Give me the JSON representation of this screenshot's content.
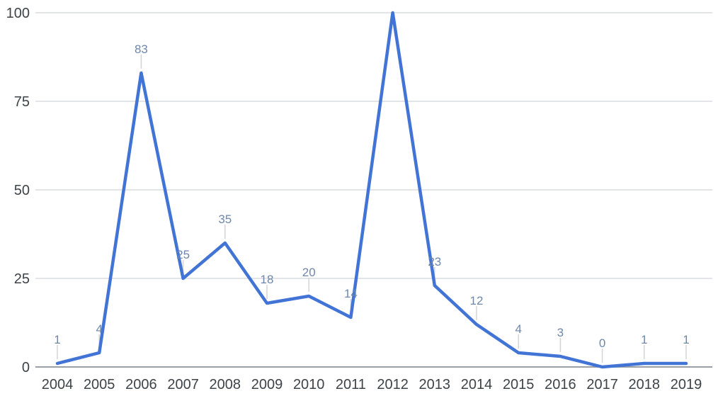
{
  "chart_data": {
    "type": "line",
    "title": "",
    "xlabel": "",
    "ylabel": "",
    "categories": [
      "2004",
      "2005",
      "2006",
      "2007",
      "2008",
      "2009",
      "2010",
      "2011",
      "2012",
      "2013",
      "2014",
      "2015",
      "2016",
      "2017",
      "2018",
      "2019"
    ],
    "values": [
      1,
      4,
      83,
      25,
      35,
      18,
      20,
      14,
      100,
      23,
      12,
      4,
      3,
      0,
      1,
      1
    ],
    "point_labels": [
      "1",
      "4",
      "83",
      "25",
      "35",
      "18",
      "20",
      "14",
      "",
      "23",
      "12",
      "4",
      "3",
      "0",
      "1",
      "1"
    ],
    "ylim": [
      0,
      100
    ],
    "y_ticks": [
      0,
      25,
      50,
      75,
      100
    ],
    "grid": "horizontal",
    "legend": "none"
  },
  "style": {
    "line_color": "#4274d6",
    "data_label_color": "#6e87aa",
    "axis_label_color": "#3e4347",
    "gridline_color": "#dadce0",
    "baseline_color": "#9aa0a6",
    "leader_line_color": "#d4d4d4",
    "background_color": "#ffffff"
  }
}
